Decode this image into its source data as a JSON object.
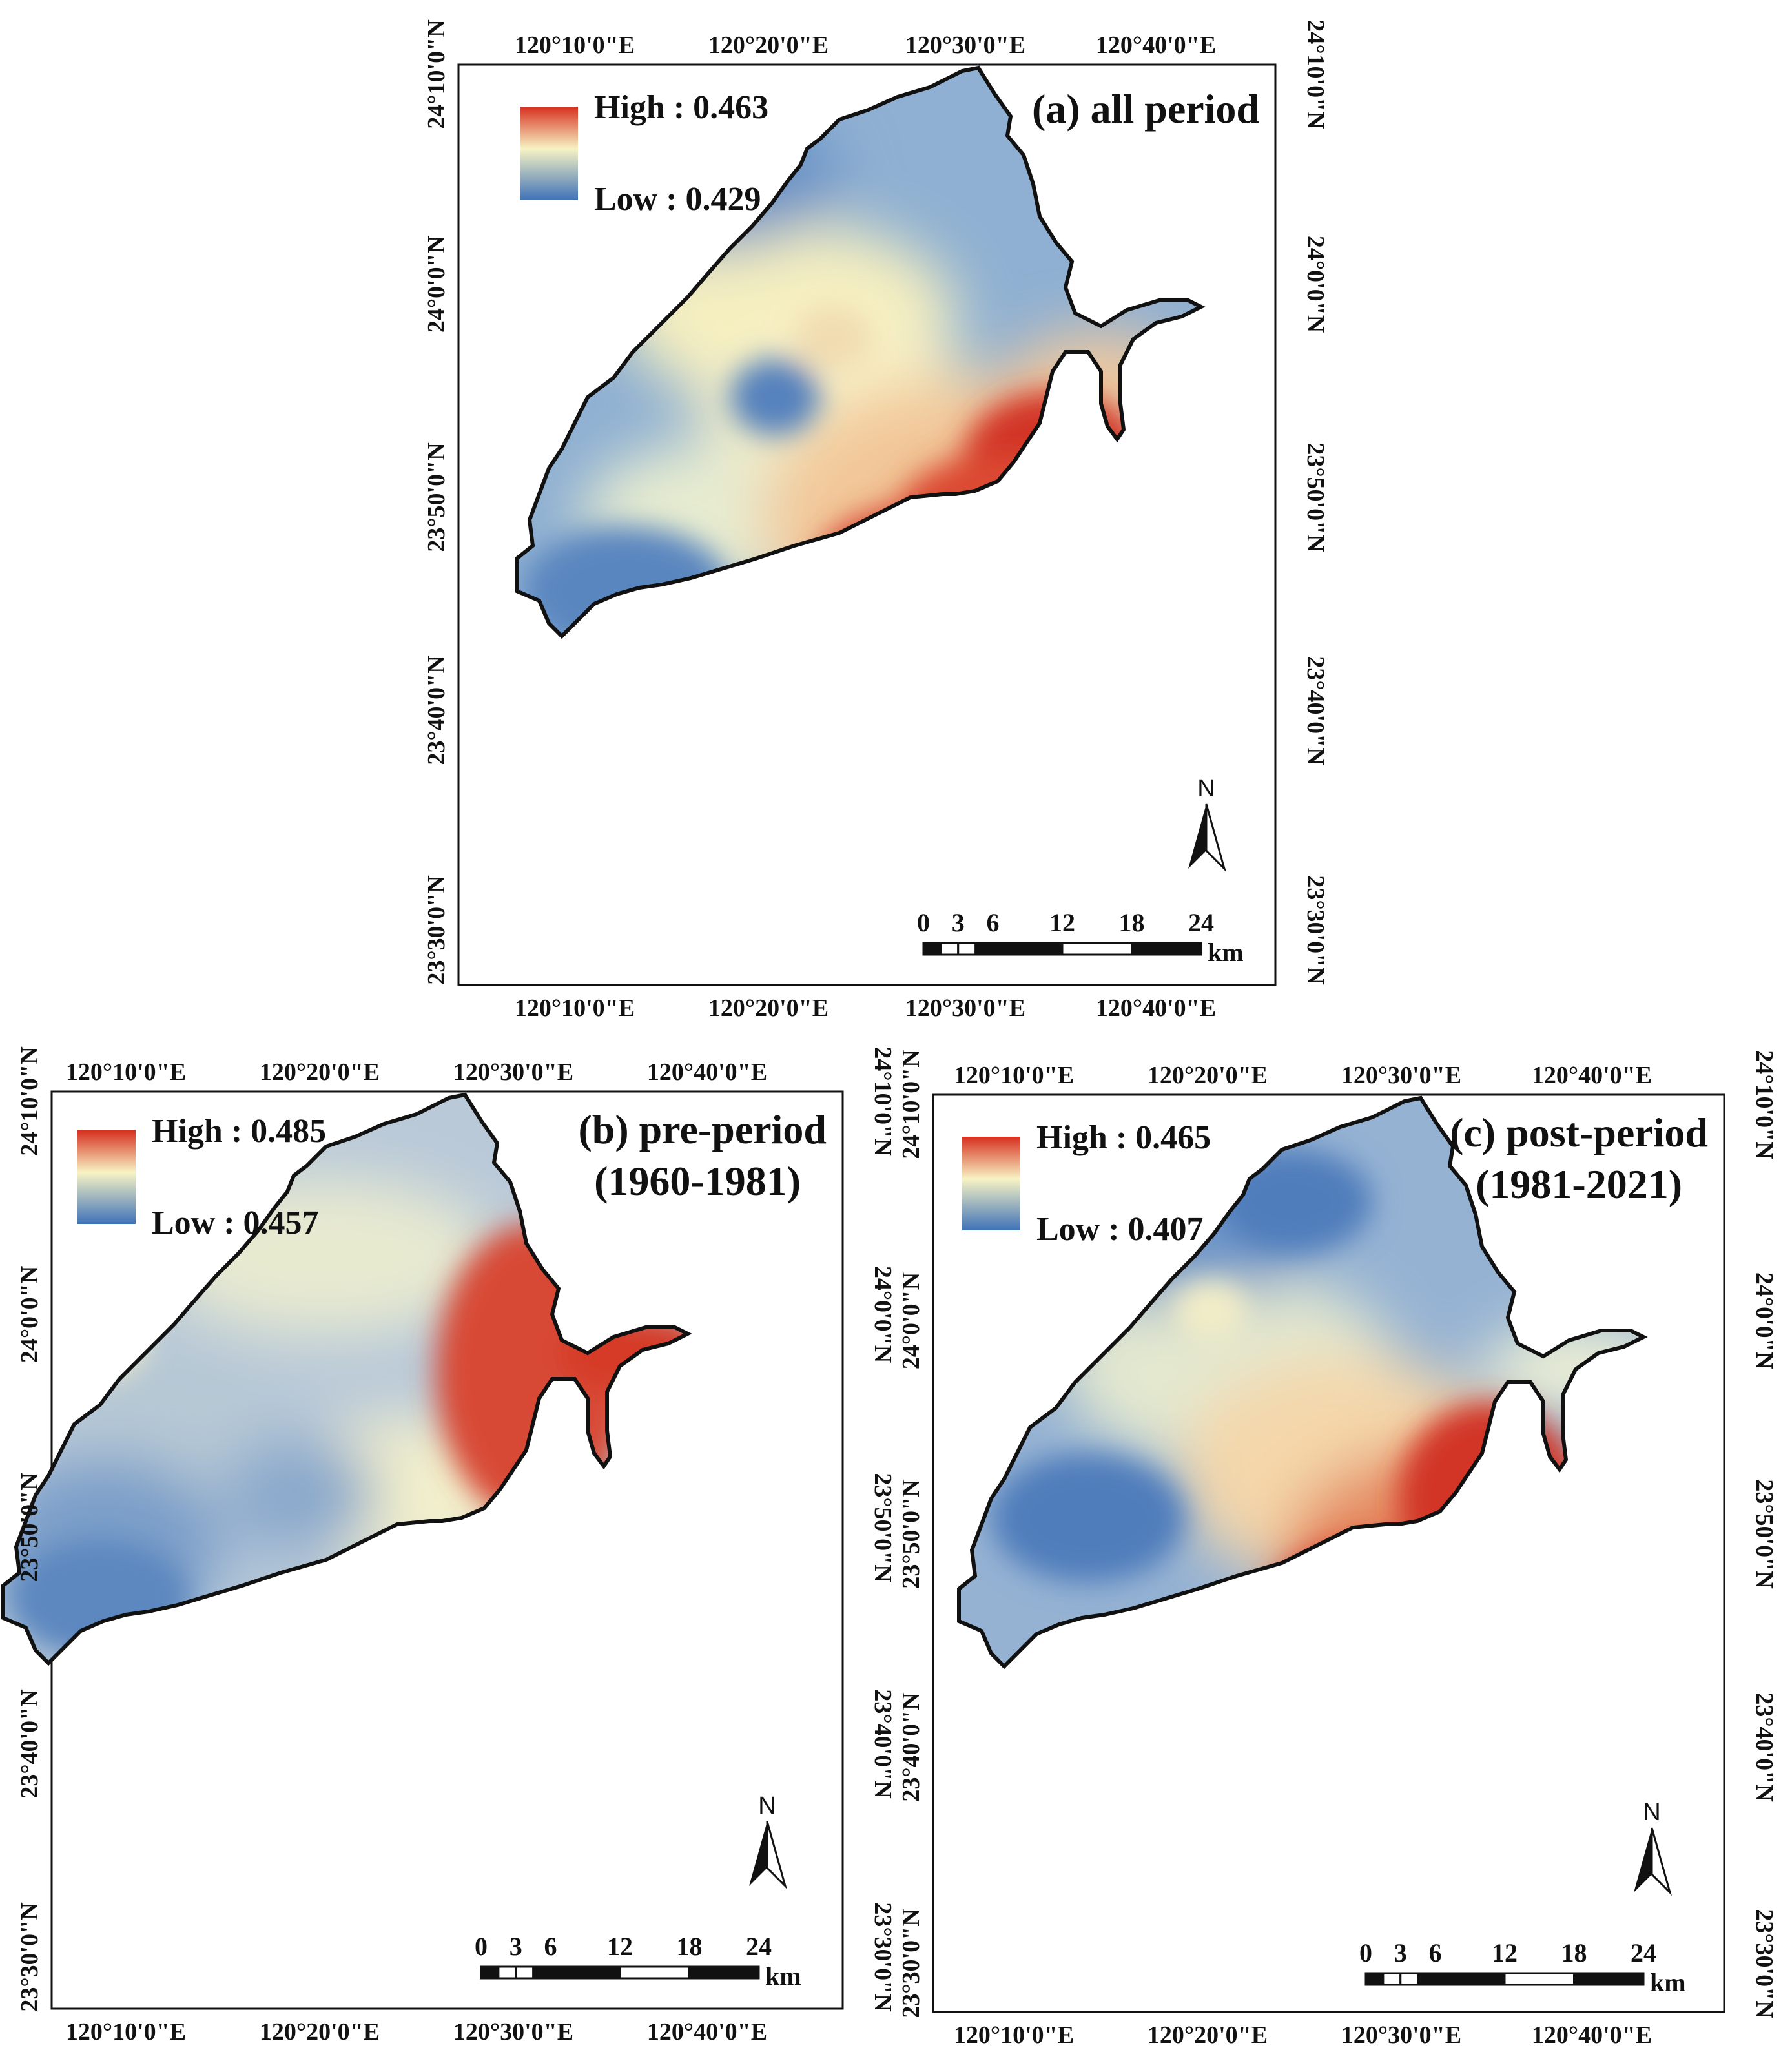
{
  "colors": {
    "high": "#d7301f",
    "mid": "#f7f3c4",
    "low": "#3f72b8",
    "outline": "#111111"
  },
  "lon_labels": [
    "120°10'0\"E",
    "120°20'0\"E",
    "120°30'0\"E",
    "120°40'0\"E"
  ],
  "lat_labels": [
    "24°10'0\"N",
    "24°0'0\"N",
    "23°50'0\"N",
    "23°40'0\"N",
    "23°30'0\"N"
  ],
  "scalebar": {
    "labels": [
      "0",
      "3",
      "6",
      "12",
      "18",
      "24"
    ],
    "unit": "km"
  },
  "north_label": "N",
  "panels": [
    {
      "id": "a",
      "title_line1": "(a) all period",
      "title_line2": "",
      "high": "High : 0.463",
      "low": "Low : 0.429"
    },
    {
      "id": "b",
      "title_line1": "(b) pre-period",
      "title_line2": "(1960-1981)",
      "high": "High : 0.485",
      "low": "Low : 0.457"
    },
    {
      "id": "c",
      "title_line1": "(c) post-period",
      "title_line2": "(1981-2021)",
      "high": "High : 0.465",
      "low": "Low : 0.407"
    }
  ]
}
